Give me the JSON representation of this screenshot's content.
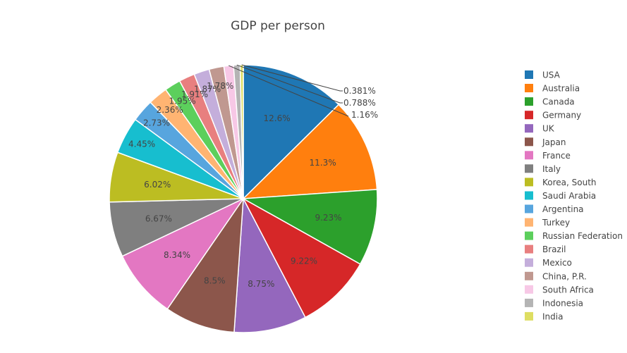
{
  "chart_data": {
    "type": "pie",
    "title": "GDP per person",
    "legend_position": "right",
    "slices": [
      {
        "name": "USA",
        "percent": 12.6,
        "label": "12.6%",
        "color": "#1f77b4"
      },
      {
        "name": "Australia",
        "percent": 11.3,
        "label": "11.3%",
        "color": "#ff7f0e"
      },
      {
        "name": "Canada",
        "percent": 9.23,
        "label": "9.23%",
        "color": "#2ca02c"
      },
      {
        "name": "Germany",
        "percent": 9.22,
        "label": "9.22%",
        "color": "#d62728"
      },
      {
        "name": "UK",
        "percent": 8.75,
        "label": "8.75%",
        "color": "#9467bd"
      },
      {
        "name": "Japan",
        "percent": 8.5,
        "label": "8.5%",
        "color": "#8c564b"
      },
      {
        "name": "France",
        "percent": 8.34,
        "label": "8.34%",
        "color": "#e377c2"
      },
      {
        "name": "Italy",
        "percent": 6.67,
        "label": "6.67%",
        "color": "#7f7f7f"
      },
      {
        "name": "Korea, South",
        "percent": 6.02,
        "label": "6.02%",
        "color": "#bcbd22"
      },
      {
        "name": "Saudi Arabia",
        "percent": 4.45,
        "label": "4.45%",
        "color": "#17becf"
      },
      {
        "name": "Argentina",
        "percent": 2.73,
        "label": "2.73%",
        "color": "#57a5de"
      },
      {
        "name": "Turkey",
        "percent": 2.36,
        "label": "2.36%",
        "color": "#ffb472"
      },
      {
        "name": "Russian Federation",
        "percent": 1.95,
        "label": "1.95%",
        "color": "#5ccf5c"
      },
      {
        "name": "Brazil",
        "percent": 1.91,
        "label": "1.91%",
        "color": "#e87f7f"
      },
      {
        "name": "Mexico",
        "percent": 1.87,
        "label": "1.87%",
        "color": "#c4aedb"
      },
      {
        "name": "China, P.R.",
        "percent": 1.78,
        "label": "1.78%",
        "color": "#c09890"
      },
      {
        "name": "South Africa",
        "percent": 1.16,
        "label": "1.16%",
        "color": "#f7c8e6"
      },
      {
        "name": "Indonesia",
        "percent": 0.788,
        "label": "0.788%",
        "color": "#b4b4b4"
      },
      {
        "name": "India",
        "percent": 0.381,
        "label": "0.381%",
        "color": "#dede62"
      }
    ]
  }
}
